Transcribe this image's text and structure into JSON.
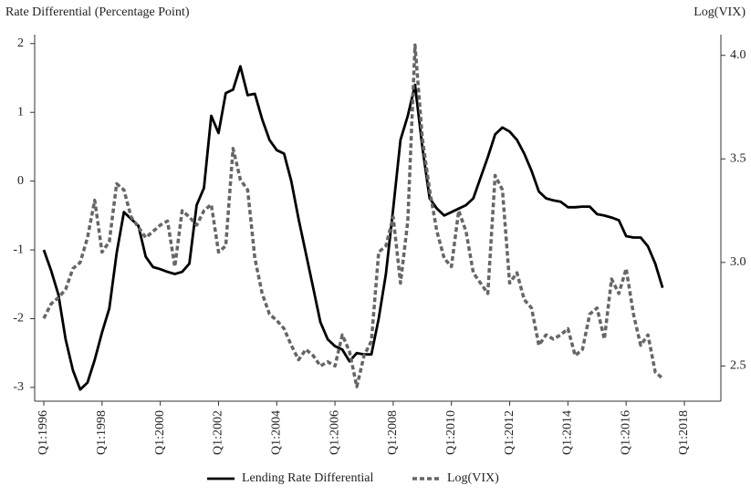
{
  "chart_data": {
    "type": "line",
    "y_label": "Rate Differential (Percentage Point)",
    "y2_label": "Log(VIX)",
    "categories": [
      "Q1:1996",
      null,
      null,
      null,
      null,
      null,
      null,
      null,
      "Q1:1998",
      null,
      null,
      null,
      null,
      null,
      null,
      null,
      "Q1:2000",
      null,
      null,
      null,
      null,
      null,
      null,
      null,
      "Q1:2002",
      null,
      null,
      null,
      null,
      null,
      null,
      null,
      "Q1:2004",
      null,
      null,
      null,
      null,
      null,
      null,
      null,
      "Q1:2006",
      null,
      null,
      null,
      null,
      null,
      null,
      null,
      "Q1:2008",
      null,
      null,
      null,
      null,
      null,
      null,
      null,
      "Q1:2010",
      null,
      null,
      null,
      null,
      null,
      null,
      null,
      "Q1:2012",
      null,
      null,
      null,
      null,
      null,
      null,
      null,
      "Q1:2014",
      null,
      null,
      null,
      null,
      null,
      null,
      null,
      "Q1:2016",
      null,
      null,
      null,
      null,
      null,
      null,
      null,
      "Q1:2018"
    ],
    "series": [
      {
        "name": "Lending Rate Differential",
        "color": "#000000",
        "dash": false,
        "values": [
          -1.0,
          -1.3,
          -1.65,
          -2.3,
          -2.75,
          -3.03,
          -2.93,
          -2.6,
          -2.2,
          -1.85,
          -1.05,
          -0.45,
          -0.55,
          -0.65,
          -1.1,
          -1.25,
          -1.28,
          -1.32,
          -1.35,
          -1.32,
          -1.2,
          -0.35,
          -0.1,
          0.95,
          0.7,
          1.28,
          1.33,
          1.67,
          1.25,
          1.27,
          0.9,
          0.6,
          0.45,
          0.4,
          0.0,
          -0.55,
          -1.05,
          -1.55,
          -2.05,
          -2.3,
          -2.4,
          -2.45,
          -2.62,
          -2.5,
          -2.52,
          -2.52,
          -2.0,
          -1.35,
          -0.4,
          0.6,
          0.95,
          1.4,
          0.5,
          -0.25,
          -0.4,
          -0.5,
          -0.45,
          -0.4,
          -0.35,
          -0.25,
          0.05,
          0.35,
          0.68,
          0.78,
          0.72,
          0.6,
          0.4,
          0.15,
          -0.15,
          -0.25,
          -0.28,
          -0.3,
          -0.38,
          -0.38,
          -0.37,
          -0.37,
          -0.48,
          -0.5,
          -0.53,
          -0.57,
          -0.8,
          -0.82,
          -0.82,
          -0.95,
          -1.2,
          -1.55,
          null,
          null,
          null
        ]
      },
      {
        "name": "Log(VIX)",
        "color": "#666666",
        "dash": true,
        "axis": "y2",
        "values": [
          2.73,
          2.8,
          2.83,
          2.87,
          2.97,
          3.0,
          3.12,
          3.3,
          3.05,
          3.1,
          3.38,
          3.35,
          3.22,
          3.17,
          3.12,
          3.15,
          3.18,
          3.2,
          2.98,
          3.25,
          3.22,
          3.18,
          3.25,
          3.28,
          3.05,
          3.08,
          3.55,
          3.4,
          3.35,
          3.02,
          2.85,
          2.75,
          2.72,
          2.68,
          2.6,
          2.53,
          2.58,
          2.55,
          2.5,
          2.52,
          2.5,
          2.65,
          2.57,
          2.4,
          2.55,
          2.62,
          3.05,
          3.08,
          3.22,
          2.9,
          3.2,
          4.05,
          3.6,
          3.35,
          3.15,
          3.02,
          2.98,
          3.25,
          3.15,
          2.95,
          2.9,
          2.85,
          3.42,
          3.35,
          2.9,
          2.95,
          2.82,
          2.78,
          2.6,
          2.65,
          2.63,
          2.65,
          2.68,
          2.55,
          2.58,
          2.75,
          2.78,
          2.63,
          2.92,
          2.85,
          2.97,
          2.75,
          2.6,
          2.65,
          2.47,
          2.44,
          null,
          null,
          null
        ]
      }
    ],
    "ylim": [
      -3.2,
      2.13
    ],
    "yticks": [
      -3,
      -2,
      -1,
      0,
      1,
      2
    ],
    "y2lim": [
      2.33,
      4.1
    ],
    "y2ticks": [
      2.5,
      {
        "value": 3,
        "label": "3.0"
      },
      3.5,
      {
        "value": 4,
        "label": "4.0"
      }
    ],
    "legend": "bottom"
  }
}
